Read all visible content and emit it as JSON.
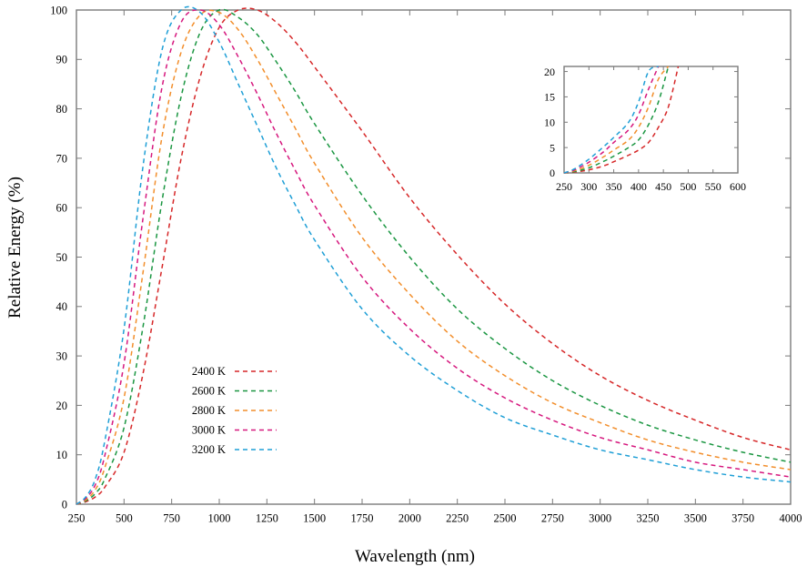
{
  "chart_data": [
    {
      "type": "line",
      "title": "",
      "xlabel": "Wavelength (nm)",
      "ylabel": "Relative Energy (%)",
      "xlim": [
        250,
        4000
      ],
      "ylim": [
        0,
        100
      ],
      "x_ticks": [
        250,
        500,
        750,
        1000,
        1250,
        1500,
        1750,
        2000,
        2250,
        2500,
        2750,
        3000,
        3250,
        3500,
        3750,
        4000
      ],
      "y_ticks": [
        0,
        10,
        20,
        30,
        40,
        50,
        60,
        70,
        80,
        90,
        100
      ],
      "line_style": "dashed",
      "grid": false,
      "legend_position": "lower-left",
      "x": [
        250,
        300,
        350,
        400,
        500,
        600,
        700,
        800,
        900,
        1000,
        1100,
        1200,
        1300,
        1400,
        1500,
        1750,
        2000,
        2250,
        2500,
        2750,
        3000,
        3250,
        3500,
        3750,
        4000
      ],
      "series": [
        {
          "name": "2400 K",
          "color": "#d62728",
          "values": [
            0.0,
            0.5,
            1.5,
            3.5,
            10.5,
            26.5,
            48.0,
            70.0,
            86.5,
            96.5,
            100.0,
            100.0,
            97.5,
            93.5,
            88.5,
            75.5,
            62.0,
            50.5,
            40.5,
            32.5,
            26.0,
            21.0,
            17.0,
            13.5,
            11.0
          ]
        },
        {
          "name": "2600 K",
          "color": "#1a9641",
          "values": [
            0.0,
            0.7,
            2.2,
            5.2,
            15.5,
            36.0,
            61.5,
            82.5,
            95.5,
            100.0,
            98.5,
            95.0,
            89.5,
            83.5,
            77.0,
            62.5,
            50.0,
            39.5,
            31.5,
            25.0,
            20.0,
            16.0,
            13.0,
            10.5,
            8.5
          ]
        },
        {
          "name": "2800 K",
          "color": "#f28e2b",
          "values": [
            0.0,
            0.9,
            3.0,
            7.5,
            21.5,
            47.0,
            74.5,
            91.5,
            99.0,
            99.5,
            96.0,
            90.0,
            83.0,
            76.0,
            69.0,
            54.0,
            42.5,
            33.0,
            26.0,
            20.5,
            16.5,
            13.0,
            10.5,
            8.5,
            7.0
          ]
        },
        {
          "name": "3000 K",
          "color": "#d6187e",
          "values": [
            0.0,
            1.2,
            4.0,
            10.0,
            28.5,
            58.0,
            84.5,
            97.5,
            100.0,
            97.0,
            90.5,
            83.0,
            75.0,
            67.5,
            60.5,
            46.0,
            35.5,
            27.5,
            21.5,
            17.0,
            13.5,
            11.0,
            8.5,
            7.0,
            5.5
          ]
        },
        {
          "name": "3200 K",
          "color": "#1f9fd6",
          "values": [
            0.0,
            1.5,
            5.2,
            13.0,
            35.5,
            68.5,
            92.0,
            100.0,
            99.5,
            93.5,
            85.0,
            76.5,
            68.0,
            60.5,
            53.5,
            39.5,
            30.0,
            23.0,
            17.5,
            14.0,
            11.0,
            9.0,
            7.0,
            5.5,
            4.5
          ]
        }
      ]
    },
    {
      "type": "line",
      "title": "",
      "xlabel": "",
      "ylabel": "",
      "xlim": [
        250,
        600
      ],
      "ylim": [
        0,
        21
      ],
      "x_ticks": [
        250,
        300,
        350,
        400,
        450,
        500,
        550,
        600
      ],
      "y_ticks": [
        0,
        5,
        10,
        15,
        20
      ],
      "line_style": "dashed",
      "grid": false,
      "x": [
        250,
        270,
        300,
        330,
        350,
        380,
        400,
        420,
        440,
        460,
        480,
        500
      ],
      "series": [
        {
          "color": "#d62728",
          "values": [
            0.0,
            0.15,
            0.6,
            1.4,
            2.2,
            3.5,
            4.5,
            6.0,
            9.0,
            13.0,
            21.0,
            null
          ]
        },
        {
          "color": "#1a9641",
          "values": [
            0.0,
            0.25,
            1.0,
            2.3,
            3.3,
            5.0,
            6.5,
            9.5,
            14.0,
            21.0,
            null,
            null
          ]
        },
        {
          "color": "#f28e2b",
          "values": [
            0.0,
            0.4,
            1.5,
            3.2,
            4.5,
            6.5,
            9.0,
            13.0,
            18.5,
            21.0,
            null,
            null
          ]
        },
        {
          "color": "#d6187e",
          "values": [
            0.0,
            0.55,
            2.1,
            4.2,
            6.0,
            8.5,
            11.5,
            16.5,
            21.0,
            null,
            null,
            null
          ]
        },
        {
          "color": "#1f9fd6",
          "values": [
            0.0,
            0.75,
            2.7,
            5.2,
            7.0,
            10.0,
            14.0,
            20.0,
            21.0,
            null,
            null,
            null
          ]
        }
      ]
    }
  ]
}
